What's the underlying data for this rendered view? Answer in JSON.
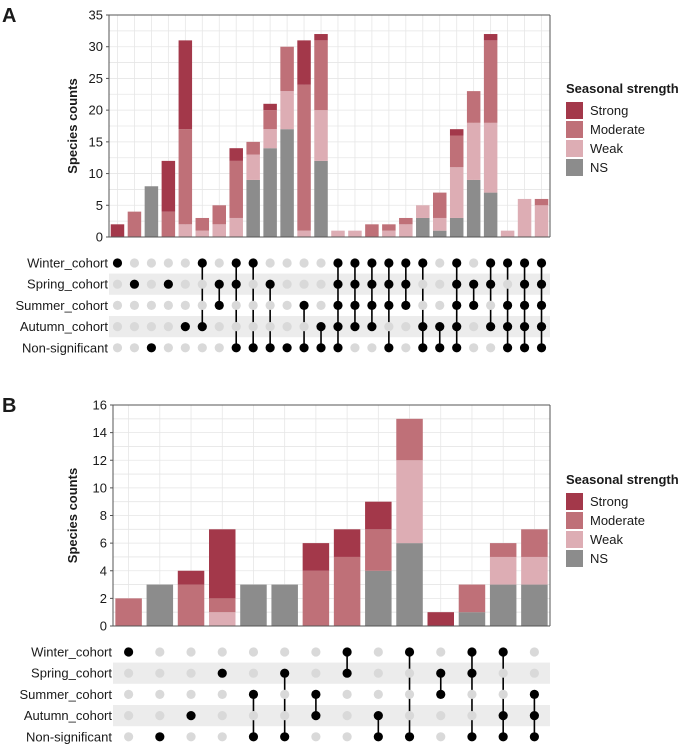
{
  "colors": {
    "Strong": "#a3384a",
    "Moderate": "#bf7078",
    "Weak": "#ddadb4",
    "NS": "#8c8c8c",
    "dot_on": "#000000",
    "dot_off": "#d9d9d9",
    "stripe": "#ececec",
    "grid": "#e6e6e6"
  },
  "chart_data": [
    {
      "panel_label": "A",
      "type": "bar",
      "ylabel": "Species counts",
      "ylim": [
        0,
        35
      ],
      "yticks": [
        0,
        5,
        10,
        15,
        20,
        25,
        30,
        35
      ],
      "legend_title": "Seasonal strength",
      "legend_position": "right",
      "stack_order": [
        "NS",
        "Weak",
        "Moderate",
        "Strong"
      ],
      "legend": [
        "Strong",
        "Moderate",
        "Weak",
        "NS"
      ],
      "sets": [
        "Winter_cohort",
        "Spring_cohort",
        "Summer_cohort",
        "Autumn_cohort",
        "Non-significant"
      ],
      "bars": [
        {
          "Strong": 2,
          "Moderate": 0,
          "Weak": 0,
          "NS": 0
        },
        {
          "Strong": 0,
          "Moderate": 4,
          "Weak": 0,
          "NS": 0
        },
        {
          "Strong": 0,
          "Moderate": 0,
          "Weak": 0,
          "NS": 8
        },
        {
          "Strong": 8,
          "Moderate": 4,
          "Weak": 0,
          "NS": 0
        },
        {
          "Strong": 14,
          "Moderate": 15,
          "Weak": 2,
          "NS": 0
        },
        {
          "Strong": 0,
          "Moderate": 2,
          "Weak": 1,
          "NS": 0
        },
        {
          "Strong": 0,
          "Moderate": 3,
          "Weak": 2,
          "NS": 0
        },
        {
          "Strong": 2,
          "Moderate": 9,
          "Weak": 3,
          "NS": 0
        },
        {
          "Strong": 0,
          "Moderate": 2,
          "Weak": 4,
          "NS": 9
        },
        {
          "Strong": 1,
          "Moderate": 3,
          "Weak": 3,
          "NS": 14
        },
        {
          "Strong": 0,
          "Moderate": 7,
          "Weak": 6,
          "NS": 17
        },
        {
          "Strong": 7,
          "Moderate": 23,
          "Weak": 1,
          "NS": 0
        },
        {
          "Strong": 1,
          "Moderate": 11,
          "Weak": 8,
          "NS": 12
        },
        {
          "Strong": 0,
          "Moderate": 0,
          "Weak": 1,
          "NS": 0
        },
        {
          "Strong": 0,
          "Moderate": 0,
          "Weak": 1,
          "NS": 0
        },
        {
          "Strong": 0,
          "Moderate": 2,
          "Weak": 0,
          "NS": 0
        },
        {
          "Strong": 0,
          "Moderate": 1,
          "Weak": 1,
          "NS": 0
        },
        {
          "Strong": 0,
          "Moderate": 1,
          "Weak": 2,
          "NS": 0
        },
        {
          "Strong": 0,
          "Moderate": 0,
          "Weak": 2,
          "NS": 3
        },
        {
          "Strong": 0,
          "Moderate": 4,
          "Weak": 2,
          "NS": 1
        },
        {
          "Strong": 1,
          "Moderate": 5,
          "Weak": 8,
          "NS": 3
        },
        {
          "Strong": 0,
          "Moderate": 5,
          "Weak": 9,
          "NS": 9
        },
        {
          "Strong": 1,
          "Moderate": 13,
          "Weak": 11,
          "NS": 7
        },
        {
          "Strong": 0,
          "Moderate": 0,
          "Weak": 1,
          "NS": 0
        },
        {
          "Strong": 0,
          "Moderate": 0,
          "Weak": 6,
          "NS": 0
        },
        {
          "Strong": 0,
          "Moderate": 1,
          "Weak": 5,
          "NS": 0
        }
      ],
      "membership": [
        [
          0
        ],
        [
          1
        ],
        [
          4
        ],
        [
          1
        ],
        [
          3
        ],
        [
          0,
          3
        ],
        [
          1,
          2
        ],
        [
          0,
          1,
          4
        ],
        [
          0,
          4
        ],
        [
          1,
          4
        ],
        [
          4
        ],
        [
          2,
          4
        ],
        [
          3,
          4
        ],
        [
          0,
          1,
          2,
          3,
          4
        ],
        [
          0,
          1,
          2,
          3
        ],
        [
          0,
          1,
          2,
          3
        ],
        [
          0,
          1,
          2,
          4
        ],
        [
          0,
          1,
          2
        ],
        [
          0,
          3,
          4
        ],
        [
          3,
          4
        ],
        [
          0,
          1,
          2,
          3,
          4
        ],
        [
          1,
          2
        ],
        [
          0,
          1,
          3
        ],
        [
          0,
          2,
          3,
          4
        ],
        [
          0,
          1,
          2,
          3,
          4
        ],
        [
          0,
          1,
          2,
          3,
          4
        ]
      ]
    },
    {
      "panel_label": "B",
      "type": "bar",
      "ylabel": "Species counts",
      "ylim": [
        0,
        16
      ],
      "yticks": [
        0,
        2,
        4,
        6,
        8,
        10,
        12,
        14,
        16
      ],
      "legend_title": "Seasonal strength",
      "legend_position": "right",
      "stack_order": [
        "NS",
        "Weak",
        "Moderate",
        "Strong"
      ],
      "legend": [
        "Strong",
        "Moderate",
        "Weak",
        "NS"
      ],
      "sets": [
        "Winter_cohort",
        "Spring_cohort",
        "Summer_cohort",
        "Autumn_cohort",
        "Non-significant"
      ],
      "bars": [
        {
          "Strong": 0,
          "Moderate": 2,
          "Weak": 0,
          "NS": 0
        },
        {
          "Strong": 0,
          "Moderate": 0,
          "Weak": 0,
          "NS": 3
        },
        {
          "Strong": 1,
          "Moderate": 3,
          "Weak": 0,
          "NS": 0
        },
        {
          "Strong": 5,
          "Moderate": 1,
          "Weak": 1,
          "NS": 0
        },
        {
          "Strong": 0,
          "Moderate": 0,
          "Weak": 0,
          "NS": 3
        },
        {
          "Strong": 0,
          "Moderate": 0,
          "Weak": 0,
          "NS": 3
        },
        {
          "Strong": 2,
          "Moderate": 4,
          "Weak": 0,
          "NS": 0
        },
        {
          "Strong": 2,
          "Moderate": 5,
          "Weak": 0,
          "NS": 0
        },
        {
          "Strong": 2,
          "Moderate": 3,
          "Weak": 0,
          "NS": 4
        },
        {
          "Strong": 0,
          "Moderate": 3,
          "Weak": 6,
          "NS": 6
        },
        {
          "Strong": 1,
          "Moderate": 0,
          "Weak": 0,
          "NS": 0
        },
        {
          "Strong": 0,
          "Moderate": 2,
          "Weak": 0,
          "NS": 1
        },
        {
          "Strong": 0,
          "Moderate": 1,
          "Weak": 2,
          "NS": 3
        },
        {
          "Strong": 0,
          "Moderate": 2,
          "Weak": 2,
          "NS": 3
        }
      ],
      "membership": [
        [
          0
        ],
        [
          4
        ],
        [
          3
        ],
        [
          1
        ],
        [
          2,
          4
        ],
        [
          1,
          4
        ],
        [
          2,
          3
        ],
        [
          0,
          1
        ],
        [
          3,
          4
        ],
        [
          0,
          4
        ],
        [
          1,
          2
        ],
        [
          0,
          1,
          4
        ],
        [
          0,
          3,
          4
        ],
        [
          2,
          3,
          4
        ]
      ]
    }
  ]
}
